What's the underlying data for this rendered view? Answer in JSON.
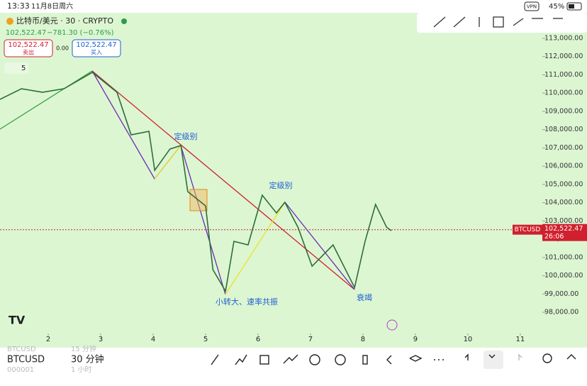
{
  "status_bar": {
    "time": "13:33",
    "date": "11月8日周六",
    "vpn": "VPN",
    "battery": "45%"
  },
  "header": {
    "symbol": "比特币/美元 · 30 · CRYPTO",
    "change": "−781.30 (−0.76%)",
    "sell_label": "卖出",
    "buy_label": "买入",
    "spread": "0.00",
    "interval_count": "5"
  },
  "chart_data": {
    "type": "line",
    "x": [
      1.08,
      1.49,
      1.89,
      2.3,
      2.84,
      3.31,
      3.58,
      3.92,
      4.03,
      4.32,
      4.53,
      4.66,
      5.0,
      5.14,
      5.38,
      5.54,
      5.81,
      6.08,
      6.35,
      6.51,
      6.76,
      7.03,
      7.43,
      7.84,
      8.04,
      8.24,
      8.45,
      8.54
    ],
    "values": [
      109657,
      110240,
      110046,
      110240,
      111134,
      110046,
      107714,
      107908,
      105770,
      106936,
      107131,
      104604,
      103826,
      100328,
      99162,
      101883,
      101689,
      104410,
      103438,
      104021,
      102661,
      100522,
      101689,
      99357,
      101883,
      103904,
      102661,
      102467
    ],
    "color": "#2f6d3a",
    "xlim": [
      1.08,
      11.42
    ],
    "ylim": [
      97150,
      114320
    ],
    "xticks": [
      2,
      3,
      4,
      5,
      6,
      7,
      8,
      9,
      10,
      11
    ],
    "yticks": [
      {
        "value": 113000,
        "label": "113,000.00"
      },
      {
        "value": 112000,
        "label": "112,000.00"
      },
      {
        "value": 111000,
        "label": "111,000.00"
      },
      {
        "value": 110000,
        "label": "110,000.00"
      },
      {
        "value": 109000,
        "label": "109,000.00"
      },
      {
        "value": 108000,
        "label": "108,000.00"
      },
      {
        "value": 107000,
        "label": "107,000.00"
      },
      {
        "value": 106000,
        "label": "106,000.00"
      },
      {
        "value": 105000,
        "label": "105,000.00"
      },
      {
        "value": 104000,
        "label": "104,000.00"
      },
      {
        "value": 103000,
        "label": "103,000.00"
      },
      {
        "value": 102000,
        "label": "102,000.00"
      },
      {
        "value": 101000,
        "label": "101,000.00"
      },
      {
        "value": 100000,
        "label": "100,000.00"
      },
      {
        "value": 99000,
        "label": "99,000.00"
      },
      {
        "value": 98000,
        "label": "98,000.00"
      }
    ],
    "current_price": {
      "value": 102522.47,
      "label": "102,522.47"
    },
    "price_tag": "BTCUSD",
    "countdown": "26:06",
    "annotations": [
      "定级别",
      "定级别",
      "小转大、速率共振",
      "衰竭"
    ]
  },
  "bottom_bar": {
    "symbol": "BTCUSD",
    "interval": "30 分钟",
    "ghost": [
      "BTCUSD",
      "15 分钟",
      "000001",
      "1 小时"
    ]
  }
}
